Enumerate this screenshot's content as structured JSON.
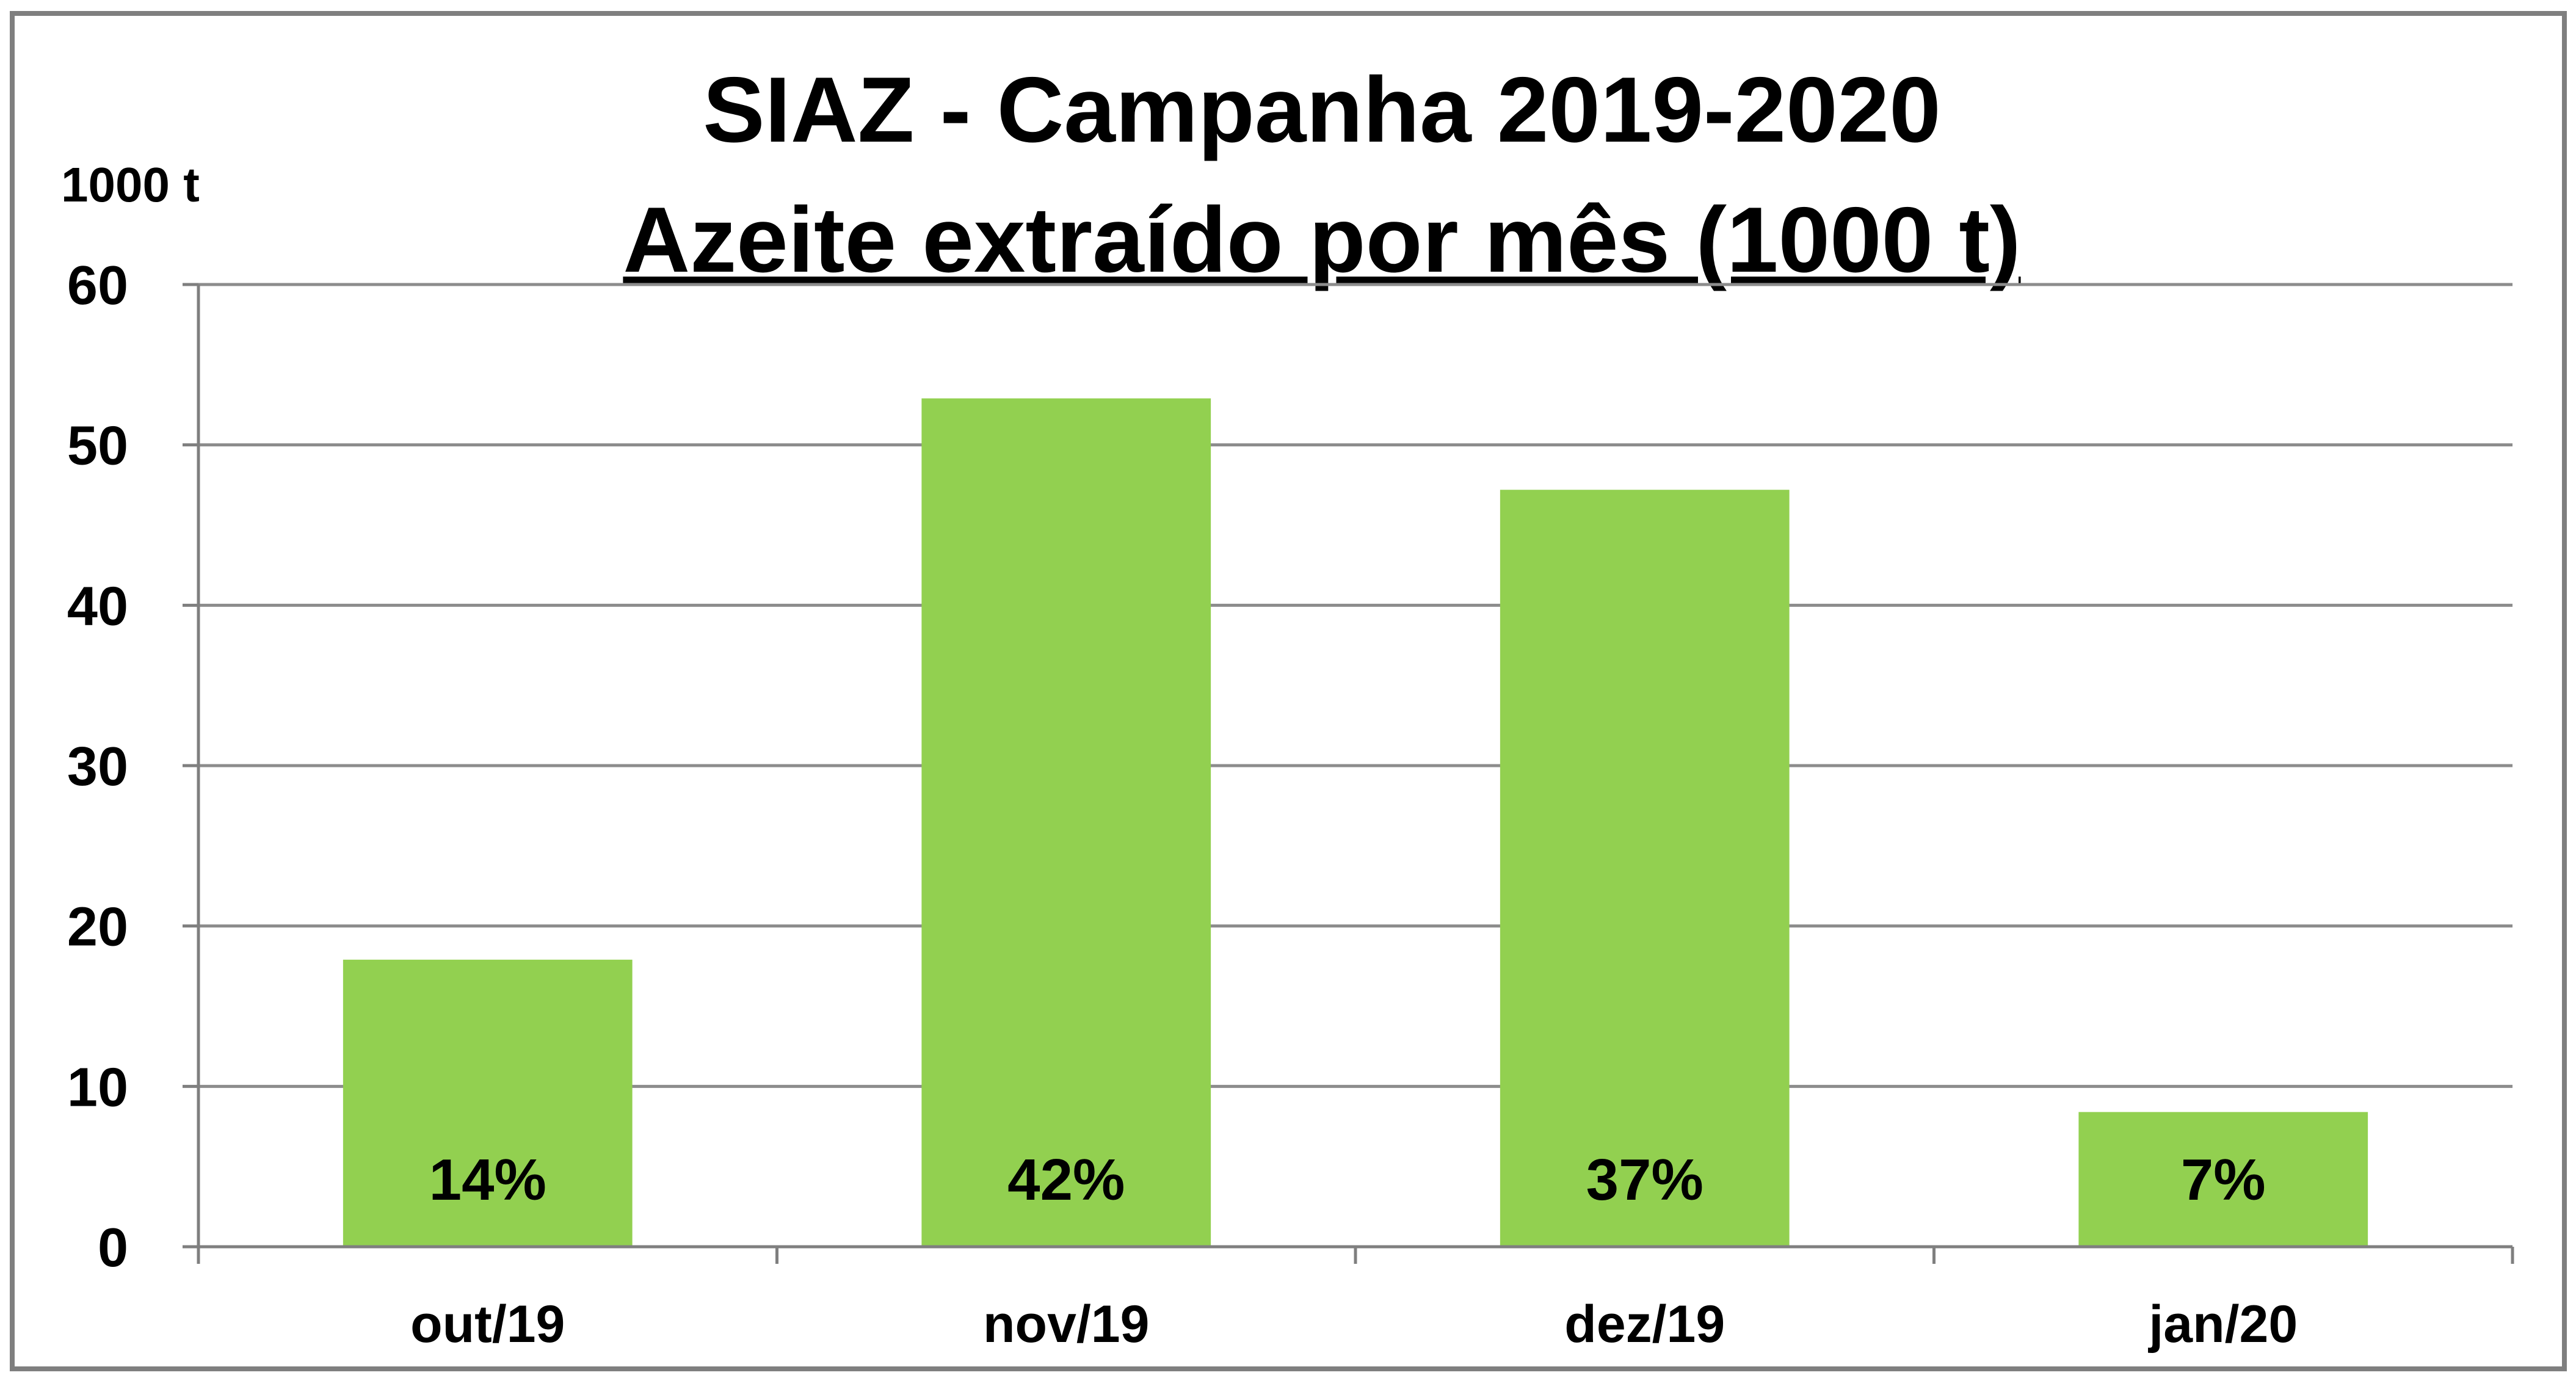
{
  "chart_data": {
    "type": "bar",
    "title": "SIAZ - Campanha 2019-2020",
    "subtitle": "Azeite extraído por mês (1000 t)",
    "xlabel": "",
    "ylabel": "1000 t",
    "categories": [
      "out/19",
      "nov/19",
      "dez/19",
      "jan/20"
    ],
    "values": [
      17.9,
      52.9,
      47.2,
      8.4
    ],
    "data_labels": [
      "14%",
      "42%",
      "37%",
      "7%"
    ],
    "ylim": [
      0,
      60
    ],
    "yticks": [
      0,
      10,
      20,
      30,
      40,
      50,
      60
    ],
    "grid": true,
    "legend": "none",
    "colors": {
      "bar": "#92d050",
      "grid": "#8c8c8c",
      "axis": "#7f7f7f",
      "frame": "#7f7f7f",
      "text": "#000000"
    }
  }
}
